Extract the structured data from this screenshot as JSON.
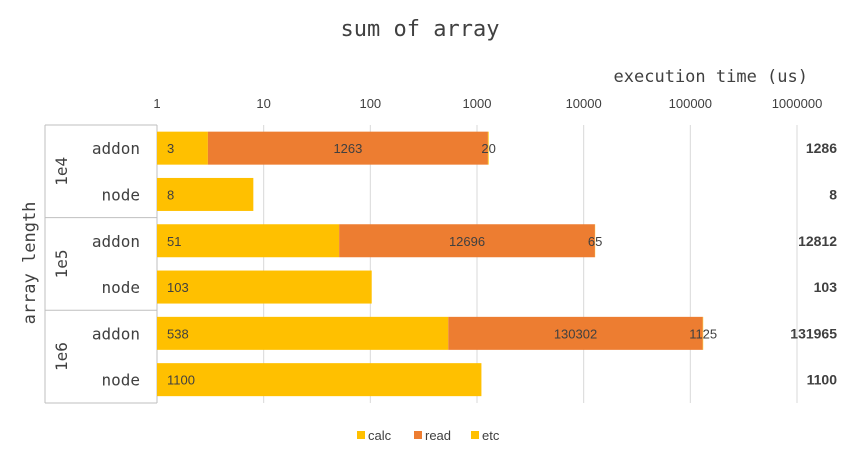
{
  "chart_data": {
    "type": "bar",
    "orientation": "horizontal",
    "stacked": true,
    "x_scale": "log",
    "title": "sum of array",
    "xlabel": "execution time (us)",
    "ylabel": "array length",
    "xlim": [
      1,
      1000000
    ],
    "x_ticks": [
      "1",
      "10",
      "100",
      "1000",
      "10000",
      "100000",
      "1000000"
    ],
    "x_tick_values": [
      1,
      10,
      100,
      1000,
      10000,
      100000,
      1000000
    ],
    "groups": [
      {
        "label": "1e4",
        "rows": [
          0,
          1
        ]
      },
      {
        "label": "1e5",
        "rows": [
          2,
          3
        ]
      },
      {
        "label": "1e6",
        "rows": [
          4,
          5
        ]
      }
    ],
    "categories": [
      "addon",
      "node",
      "addon",
      "node",
      "addon",
      "node"
    ],
    "series": [
      {
        "name": "calc",
        "color": "#FFC000",
        "values": [
          3,
          8,
          51,
          103,
          538,
          1100
        ],
        "labels": [
          "3",
          "8",
          "51",
          "103",
          "538",
          "1100"
        ]
      },
      {
        "name": "read",
        "color": "#ED7D31",
        "values": [
          1263,
          0,
          12696,
          0,
          130302,
          0
        ],
        "labels": [
          "1263",
          "",
          "12696",
          "",
          "130302",
          ""
        ]
      },
      {
        "name": "etc",
        "color": "#FFC000",
        "values": [
          20,
          0,
          65,
          0,
          1125,
          0
        ],
        "labels": [
          "20",
          "",
          "65",
          "",
          "1125",
          ""
        ]
      }
    ],
    "totals": [
      "1286",
      "8",
      "12812",
      "103",
      "131965",
      "1100"
    ],
    "grid": true,
    "legend_position": "bottom"
  }
}
